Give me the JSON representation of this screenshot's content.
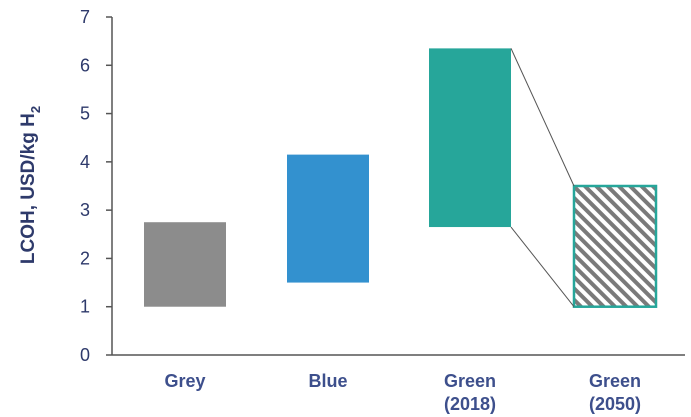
{
  "chart_data": {
    "type": "bar",
    "subtype": "floating-range",
    "ylabel_main": "LCOH, USD/kg H",
    "ylabel_subscript": "2",
    "ylim": [
      0,
      7
    ],
    "yticks": [
      "0",
      "1",
      "2",
      "3",
      "4",
      "5",
      "6",
      "7"
    ],
    "grid": false,
    "legend": "none",
    "categories": [
      {
        "line1": "Grey",
        "line2": ""
      },
      {
        "line1": "Blue",
        "line2": ""
      },
      {
        "line1": "Green",
        "line2": "(2018)"
      },
      {
        "line1": "Green",
        "line2": "(2050)"
      }
    ],
    "ranges": [
      {
        "low": 1.0,
        "high": 2.75,
        "color": "#8c8c8c",
        "fill": "solid"
      },
      {
        "low": 1.5,
        "high": 4.15,
        "color": "#3391cf",
        "fill": "solid"
      },
      {
        "low": 2.65,
        "high": 6.35,
        "color": "#26a69a",
        "fill": "solid"
      },
      {
        "low": 1.0,
        "high": 3.5,
        "color": "#26a69a",
        "fill": "hatched"
      }
    ],
    "connectors": {
      "from": 2,
      "to": 3,
      "color": "#555555"
    }
  }
}
